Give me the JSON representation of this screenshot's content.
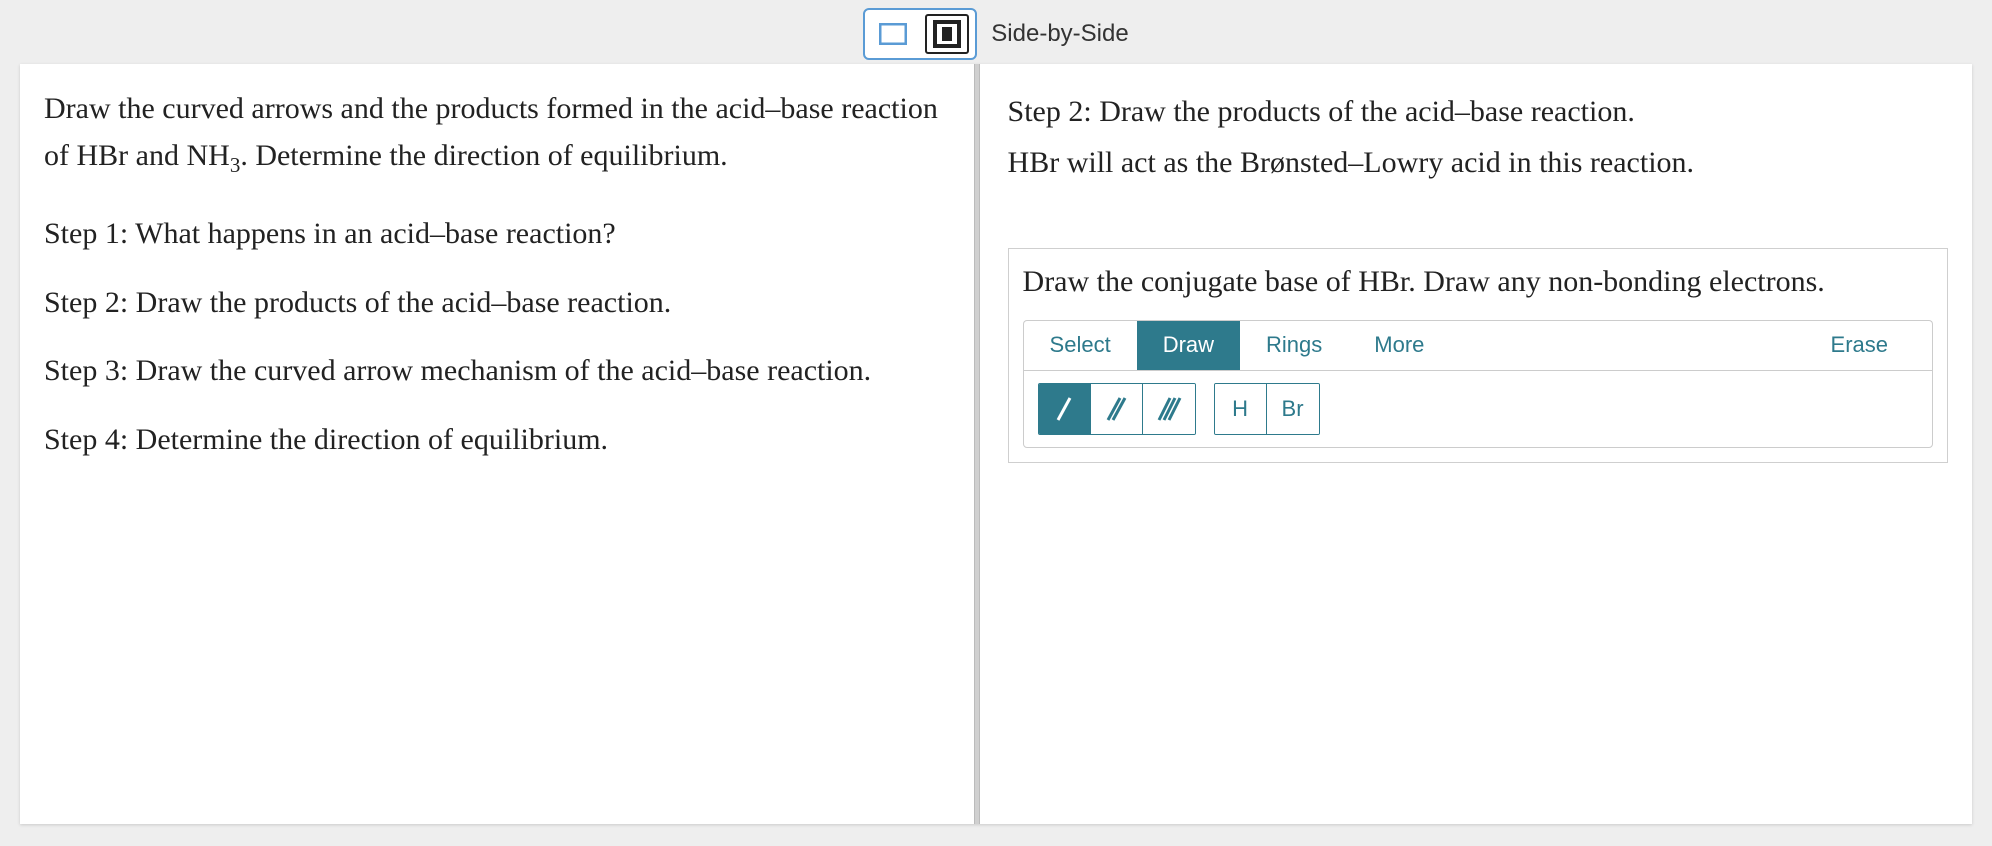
{
  "topbar": {
    "label": "Side-by-Side",
    "layout_single_icon": "single-pane-icon",
    "layout_split_icon": "split-pane-icon"
  },
  "left": {
    "intro_html": "Draw the curved arrows and the products formed in the acid–base reaction of HBr and NH<sub>3</sub>. Determine the direction of equilibrium.",
    "steps": [
      "Step 1: What happens in an acid–base reaction?",
      "Step 2: Draw the products of the acid–base reaction.",
      "Step 3: Draw the curved arrow mechanism of the acid–base reaction.",
      "Step 4: Determine the direction of equilibrium."
    ]
  },
  "right": {
    "heading": "Step 2: Draw the products of the acid–base reaction.",
    "subtext": "HBr will act as the Brønsted–Lowry acid in this reaction.",
    "draw_instruction": "Draw the conjugate base of HBr. Draw any non-bonding electrons.",
    "tabs": {
      "select": "Select",
      "draw": "Draw",
      "rings": "Rings",
      "more": "More",
      "erase": "Erase"
    },
    "atoms": {
      "h": "H",
      "br": "Br"
    }
  },
  "colors": {
    "accent": "#2e7a8c",
    "panel_bg": "#ffffff",
    "page_bg": "#eeeeee",
    "border": "#cfcfcf",
    "topbar_blue": "#5a9bd5"
  }
}
